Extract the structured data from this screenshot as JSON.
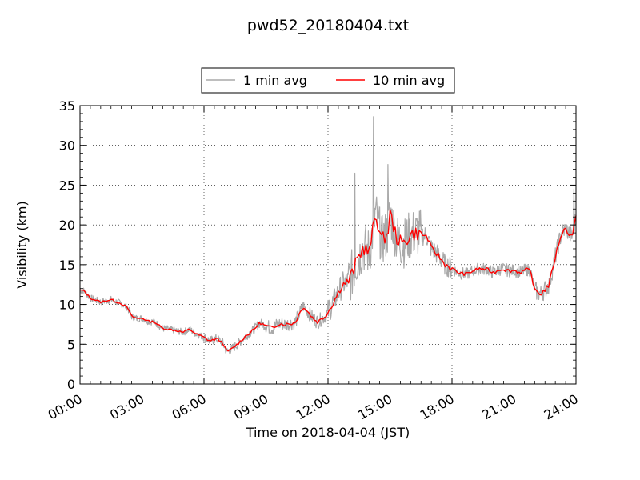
{
  "chart_data": {
    "type": "line",
    "title": "pwd52_20180404.txt",
    "xlabel": "Time on 2018-04-04 (JST)",
    "ylabel": "Visibility (km)",
    "xlim": [
      0,
      24
    ],
    "ylim": [
      0,
      35
    ],
    "x_tick_labels": [
      "00:00",
      "03:00",
      "06:00",
      "09:00",
      "12:00",
      "15:00",
      "18:00",
      "21:00",
      "24:00"
    ],
    "y_tick_labels": [
      "0",
      "5",
      "10",
      "15",
      "20",
      "25",
      "30",
      "35"
    ],
    "grid": true,
    "legend_position": "top-center",
    "x_unit": "hours since 00:00",
    "series": [
      {
        "name": "1 min avg",
        "color": "#a9a9a9",
        "noise_scale": "varies",
        "peaks": [
          [
            14.2,
            33.6
          ],
          [
            14.9,
            27.6
          ],
          [
            13.3,
            26.5
          ],
          [
            23.9,
            24.5
          ]
        ]
      },
      {
        "name": "10 min avg",
        "color": "#ff0000",
        "x": [
          0,
          0.2,
          0.5,
          1,
          1.5,
          2,
          2.3,
          2.5,
          2.8,
          3,
          3.3,
          3.6,
          4,
          4.5,
          5,
          5.3,
          5.6,
          5.9,
          6.3,
          6.6,
          6.9,
          7,
          7.1,
          7.3,
          7.7,
          8,
          8.4,
          8.7,
          9,
          9.3,
          9.6,
          10,
          10.4,
          10.8,
          11.3,
          11.5,
          11.9,
          12.3,
          12.7,
          13,
          13.2,
          13.4,
          13.7,
          14,
          14.3,
          14.6,
          14.9,
          15,
          15.3,
          15.6,
          16,
          16.4,
          16.8,
          17,
          17.3,
          17.6,
          18,
          18.3,
          18.7,
          19,
          19.3,
          19.7,
          20,
          20.4,
          20.8,
          21,
          21.3,
          21.6,
          21.8,
          22,
          22.3,
          22.7,
          23,
          23.3,
          23.5,
          23.8,
          24
        ],
        "values": [
          11.8,
          11.7,
          10.8,
          10.3,
          10.6,
          10.1,
          9.6,
          8.5,
          8.2,
          8.3,
          7.9,
          7.8,
          7.0,
          6.8,
          6.5,
          6.9,
          6.3,
          6.0,
          5.4,
          5.7,
          5.2,
          4.6,
          4.1,
          4.3,
          5.2,
          6.0,
          6.8,
          7.7,
          7.3,
          7.0,
          7.6,
          7.5,
          7.7,
          9.8,
          8.2,
          7.8,
          8.6,
          10.5,
          12.5,
          13.0,
          14.0,
          15.5,
          17.2,
          16.5,
          21.5,
          18.0,
          19.0,
          21.5,
          18.5,
          17.5,
          18.8,
          19.0,
          18.5,
          17.0,
          16.3,
          15.2,
          14.5,
          14.0,
          13.8,
          14.2,
          14.5,
          14.4,
          14.0,
          14.5,
          14.2,
          14.3,
          14.0,
          14.4,
          14.2,
          11.8,
          11.3,
          12.5,
          16.0,
          19.0,
          19.5,
          18.5,
          21.0
        ]
      }
    ]
  }
}
